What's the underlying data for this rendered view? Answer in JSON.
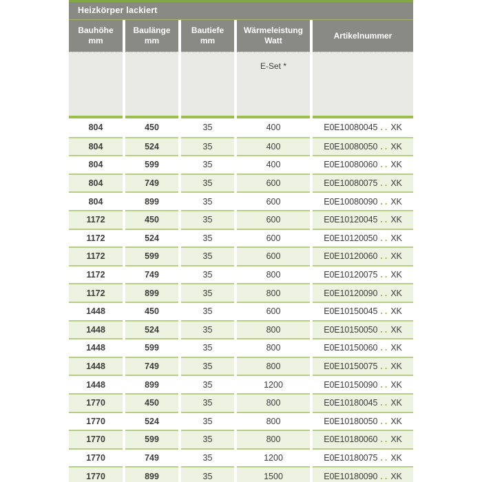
{
  "table": {
    "title": "Heizkörper lackiert",
    "columns": [
      {
        "label": "Bauhöhe",
        "unit": "mm"
      },
      {
        "label": "Baulänge",
        "unit": "mm"
      },
      {
        "label": "Bautiefe",
        "unit": "mm"
      },
      {
        "label": "Wärmeleistung",
        "unit": "Watt"
      },
      {
        "label": "Artikelnummer",
        "unit": ""
      }
    ],
    "subheader": {
      "eset_label": "E-Set *"
    },
    "article_dots": "..",
    "rows": [
      {
        "bauhoehe": "804",
        "baulaenge": "450",
        "bautiefe": "35",
        "watt": "400",
        "artikel_code": "E0E10080045",
        "artikel_suffix": "XK"
      },
      {
        "bauhoehe": "804",
        "baulaenge": "524",
        "bautiefe": "35",
        "watt": "400",
        "artikel_code": "E0E10080050",
        "artikel_suffix": "XK"
      },
      {
        "bauhoehe": "804",
        "baulaenge": "599",
        "bautiefe": "35",
        "watt": "400",
        "artikel_code": "E0E10080060",
        "artikel_suffix": "XK"
      },
      {
        "bauhoehe": "804",
        "baulaenge": "749",
        "bautiefe": "35",
        "watt": "600",
        "artikel_code": "E0E10080075",
        "artikel_suffix": "XK"
      },
      {
        "bauhoehe": "804",
        "baulaenge": "899",
        "bautiefe": "35",
        "watt": "600",
        "artikel_code": "E0E10080090",
        "artikel_suffix": "XK"
      },
      {
        "bauhoehe": "1172",
        "baulaenge": "450",
        "bautiefe": "35",
        "watt": "600",
        "artikel_code": "E0E10120045",
        "artikel_suffix": "XK"
      },
      {
        "bauhoehe": "1172",
        "baulaenge": "524",
        "bautiefe": "35",
        "watt": "600",
        "artikel_code": "E0E10120050",
        "artikel_suffix": "XK"
      },
      {
        "bauhoehe": "1172",
        "baulaenge": "599",
        "bautiefe": "35",
        "watt": "600",
        "artikel_code": "E0E10120060",
        "artikel_suffix": "XK"
      },
      {
        "bauhoehe": "1172",
        "baulaenge": "749",
        "bautiefe": "35",
        "watt": "800",
        "artikel_code": "E0E10120075",
        "artikel_suffix": "XK"
      },
      {
        "bauhoehe": "1172",
        "baulaenge": "899",
        "bautiefe": "35",
        "watt": "800",
        "artikel_code": "E0E10120090",
        "artikel_suffix": "XK"
      },
      {
        "bauhoehe": "1448",
        "baulaenge": "450",
        "bautiefe": "35",
        "watt": "600",
        "artikel_code": "E0E10150045",
        "artikel_suffix": "XK"
      },
      {
        "bauhoehe": "1448",
        "baulaenge": "524",
        "bautiefe": "35",
        "watt": "800",
        "artikel_code": "E0E10150050",
        "artikel_suffix": "XK"
      },
      {
        "bauhoehe": "1448",
        "baulaenge": "599",
        "bautiefe": "35",
        "watt": "800",
        "artikel_code": "E0E10150060",
        "artikel_suffix": "XK"
      },
      {
        "bauhoehe": "1448",
        "baulaenge": "749",
        "bautiefe": "35",
        "watt": "800",
        "artikel_code": "E0E10150075",
        "artikel_suffix": "XK"
      },
      {
        "bauhoehe": "1448",
        "baulaenge": "899",
        "bautiefe": "35",
        "watt": "1200",
        "artikel_code": "E0E10150090",
        "artikel_suffix": "XK"
      },
      {
        "bauhoehe": "1770",
        "baulaenge": "450",
        "bautiefe": "35",
        "watt": "800",
        "artikel_code": "E0E10180045",
        "artikel_suffix": "XK"
      },
      {
        "bauhoehe": "1770",
        "baulaenge": "524",
        "bautiefe": "35",
        "watt": "800",
        "artikel_code": "E0E10180050",
        "artikel_suffix": "XK"
      },
      {
        "bauhoehe": "1770",
        "baulaenge": "599",
        "bautiefe": "35",
        "watt": "800",
        "artikel_code": "E0E10180060",
        "artikel_suffix": "XK"
      },
      {
        "bauhoehe": "1770",
        "baulaenge": "749",
        "bautiefe": "35",
        "watt": "1200",
        "artikel_code": "E0E10180075",
        "artikel_suffix": "XK"
      },
      {
        "bauhoehe": "1770",
        "baulaenge": "899",
        "bautiefe": "35",
        "watt": "1500",
        "artikel_code": "E0E10180090",
        "artikel_suffix": "XK"
      }
    ],
    "colors": {
      "top_line": "#83a846",
      "header_bg": "#8a8a85",
      "header_text": "#ffffff",
      "subheader_bg": "#e9e9e6",
      "thick_line": "#9cbf4b",
      "row_shaded_bg": "#eef3e1",
      "row_separator": "#b6ce83",
      "body_text": "#3b3b39",
      "article_dots": "#8fba3c"
    }
  }
}
